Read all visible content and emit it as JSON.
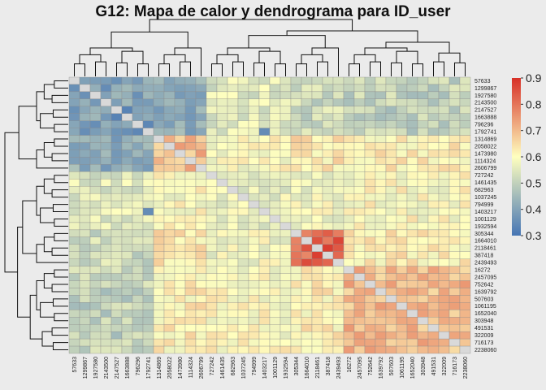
{
  "chart_data": {
    "type": "heatmap",
    "title": "G12: Mapa de calor y dendrograma para ID_user",
    "row_labels": [
      "57633",
      "1299867",
      "1927580",
      "2143500",
      "2147527",
      "1663888",
      "796296",
      "1792741",
      "1314869",
      "2058022",
      "1473980",
      "1114324",
      "2606799",
      "727242",
      "1461435",
      "682963",
      "1037245",
      "794999",
      "1403217",
      "1001129",
      "1932594",
      "305344",
      "1664010",
      "2118461",
      "387418",
      "2439493",
      "16272",
      "2457095",
      "752642",
      "1639792",
      "507603",
      "1061195",
      "1652040",
      "303948",
      "491531",
      "322009",
      "716173",
      "2238060"
    ],
    "col_labels": [
      "57633",
      "1299867",
      "1927580",
      "2143500",
      "2147527",
      "1663888",
      "796296",
      "1792741",
      "1314869",
      "2058022",
      "1473980",
      "1114324",
      "2606799",
      "727242",
      "1461435",
      "682963",
      "1037245",
      "794999",
      "1403217",
      "1001129",
      "1932594",
      "305344",
      "1664010",
      "2118461",
      "387418",
      "2439493",
      "16272",
      "2457095",
      "752642",
      "1639792",
      "507603",
      "1061195",
      "1652040",
      "303948",
      "491531",
      "322009",
      "716173",
      "2238060"
    ],
    "groups": [
      0,
      0,
      0,
      0,
      0,
      0,
      0,
      0,
      1,
      1,
      1,
      1,
      1,
      2,
      2,
      2,
      2,
      2,
      2,
      2,
      2,
      3,
      3,
      3,
      3,
      3,
      4,
      4,
      4,
      4,
      4,
      4,
      4,
      4,
      4,
      4,
      4,
      4
    ],
    "block_values": [
      [
        null,
        0.42,
        0.55,
        0.52,
        0.5
      ],
      [
        0.42,
        0.7,
        0.6,
        0.63,
        0.62
      ],
      [
        0.55,
        0.6,
        0.56,
        0.58,
        0.6
      ],
      [
        0.52,
        0.63,
        0.58,
        0.82,
        0.62
      ],
      [
        0.5,
        0.62,
        0.6,
        0.62,
        0.7
      ]
    ],
    "strong_cells": [
      {
        "row": "305344",
        "col": "1664010",
        "value": 0.78
      },
      {
        "row": "1664010",
        "col": "2118461",
        "value": 0.85
      },
      {
        "row": "2118461",
        "col": "387418",
        "value": 0.88
      },
      {
        "row": "2118461",
        "col": "2439493",
        "value": 0.84
      },
      {
        "row": "387418",
        "col": "2439493",
        "value": 0.82
      },
      {
        "row": "57633",
        "col": "2147527",
        "value": 0.36
      },
      {
        "row": "1663888",
        "col": "2147527",
        "value": 0.33
      },
      {
        "row": "1792741",
        "col": "796296",
        "value": 0.34
      },
      {
        "row": "1792741",
        "col": "1403217",
        "value": 0.35
      }
    ],
    "color_scale": {
      "min": 0.3,
      "max": 0.9,
      "low": "#4575b4",
      "mid": "#ffffbf",
      "high": "#d73027",
      "diagonal": "#d9d9d9"
    },
    "legend_ticks": [
      "0.9",
      "0.8",
      "0.7",
      "0.6",
      "0.5",
      "0.4",
      "0.3"
    ],
    "legend_position": "right",
    "grid": false
  }
}
